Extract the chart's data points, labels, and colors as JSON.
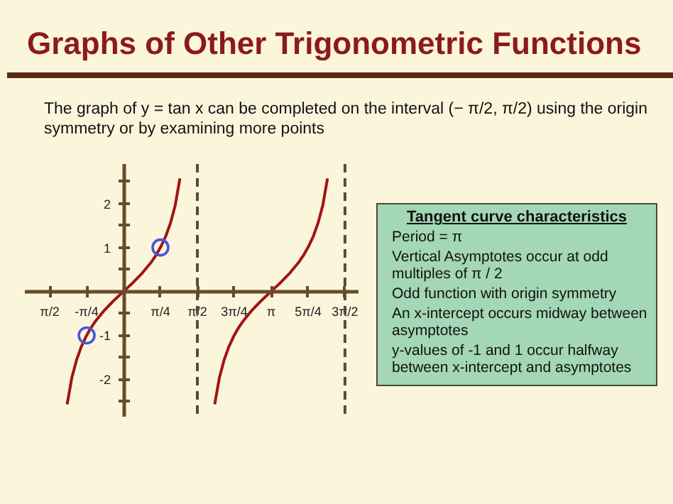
{
  "chart_data": {
    "type": "line",
    "title": "Graphs of Other Trigonometric Functions",
    "subtitle": "The graph of y = tan x can be completed on the interval (− π/2, π/2) using the origin symmetry or by examining more points",
    "series": [
      {
        "color": "#a01515",
        "x": [
          -1.2,
          -1.1,
          -1.0,
          -0.9,
          -0.8,
          -0.7,
          -0.6,
          -0.5,
          -0.4,
          -0.3,
          -0.2,
          -0.1,
          0,
          0.1,
          0.2,
          0.3,
          0.4,
          0.5,
          0.6,
          0.7,
          0.8,
          0.9,
          1.0,
          1.1,
          1.2
        ],
        "values": [
          -2.57,
          -1.96,
          -1.56,
          -1.26,
          -1.03,
          -0.84,
          -0.68,
          -0.55,
          -0.42,
          -0.31,
          -0.2,
          -0.1,
          0,
          0.1,
          0.2,
          0.31,
          0.42,
          0.55,
          0.68,
          0.84,
          1.03,
          1.26,
          1.56,
          1.96,
          2.57
        ]
      },
      {
        "color": "#a01515",
        "x": [
          1.94,
          2.04,
          2.14,
          2.24,
          2.34,
          2.44,
          2.54,
          2.64,
          2.74,
          2.84,
          2.94,
          3.04,
          3.14,
          3.24,
          3.34,
          3.44,
          3.54,
          3.64,
          3.74,
          3.84,
          3.94,
          4.04,
          4.14,
          4.24,
          4.34
        ],
        "values": [
          -2.57,
          -1.96,
          -1.56,
          -1.26,
          -1.03,
          -0.84,
          -0.68,
          -0.55,
          -0.42,
          -0.31,
          -0.2,
          -0.1,
          0,
          0.1,
          0.2,
          0.31,
          0.42,
          0.55,
          0.68,
          0.84,
          1.03,
          1.26,
          1.56,
          1.96,
          2.57
        ]
      },
      {
        "type": "scatter",
        "marker": "circle",
        "color": "#4a55d6",
        "x": [
          -0.785,
          0.785
        ],
        "values": [
          -1,
          1
        ]
      }
    ],
    "xlim": [
      -2.1,
      5.0
    ],
    "ylim": [
      -2.85,
      2.9
    ],
    "xticks": [
      {
        "value": -1.571,
        "label": "π/2"
      },
      {
        "value": -0.785,
        "label": "-π/4"
      },
      {
        "value": 0.785,
        "label": "π/4"
      },
      {
        "value": 1.571,
        "label": "π/2"
      },
      {
        "value": 2.356,
        "label": "3π/4"
      },
      {
        "value": 3.142,
        "label": "π"
      },
      {
        "value": 3.927,
        "label": "5π/4"
      },
      {
        "value": 4.712,
        "label": "3π/2"
      }
    ],
    "yticks": [
      {
        "value": -2.5,
        "label": null
      },
      -2,
      {
        "value": -1.5,
        "label": null
      },
      -1,
      {
        "value": -0.5,
        "label": null
      },
      {
        "value": 0.5,
        "label": null
      },
      1,
      {
        "value": 1.5,
        "label": null
      },
      2,
      {
        "value": 2.5,
        "label": null
      }
    ],
    "ref_lines": [
      {
        "axis": "x",
        "value": 1.571,
        "color": "#5a4a3a",
        "line_style": "dashed"
      },
      {
        "axis": "x",
        "value": 4.712,
        "color": "#5a4a3a",
        "line_style": "dashed"
      }
    ],
    "grid": false,
    "line_style": "solid",
    "annotations": [
      "Tangent curve characteristics",
      "Period = π",
      "Vertical Asymptotes occur at odd multiples of π / 2",
      "Odd function with origin symmetry",
      "An x-intercept occurs midway between asymptotes",
      "y-values of -1 and 1 occur halfway between x-intercept and asymptotes"
    ]
  }
}
